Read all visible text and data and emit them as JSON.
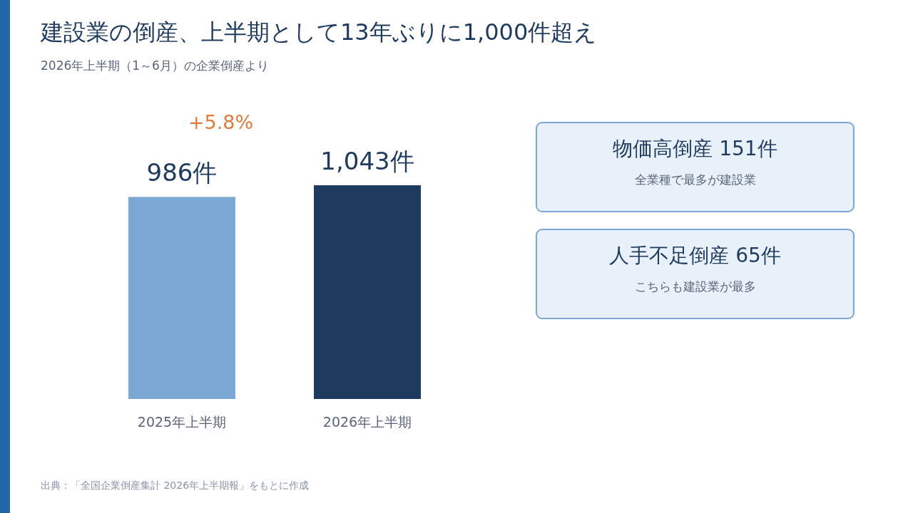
{
  "chart_data": [
    {
      "type": "bar",
      "title": "建設業の倒産、上半期として13年ぶりに1,000件超え",
      "subtitle": "2026年上半期（1～6月）の企業倒産より",
      "categories": [
        "2025年上半期",
        "2026年上半期"
      ],
      "values": [
        986,
        1043
      ],
      "colors": [
        "#7ba7d4",
        "#1e3a5f"
      ],
      "value_labels": [
        "986件",
        "1,043件"
      ],
      "annotations": [
        "+5.8%",
        "出典：「全国企業倒産集計 2026年上半期報」をもとに作成"
      ]
    },
    {
      "type": "other",
      "title": "物価高倒産 151件",
      "subtitle": "全業種で最多が建設業"
    },
    {
      "type": "other",
      "title": "人手不足倒産 65件",
      "subtitle": "こちらも建設業が最多"
    }
  ]
}
